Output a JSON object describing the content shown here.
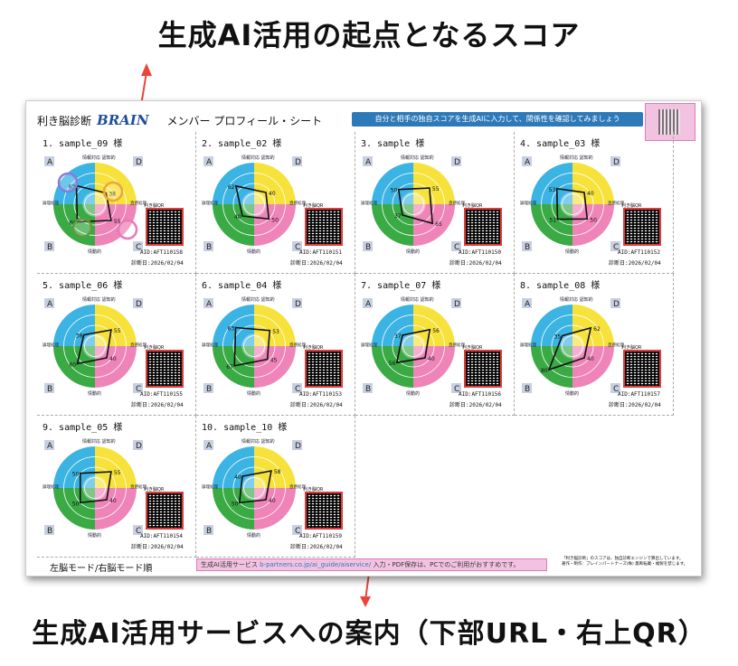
{
  "top_annotation": "生成AI活用の起点となるスコア",
  "bottom_annotation": "生成AI活用サービスへの案内（下部URL・右上QR）",
  "header": {
    "left_text": "利き脳診断",
    "brand": "BRAIN",
    "subtitle": "メンバー プロフィール・シート",
    "banner": "自分と相手の独自スコアを生成AIに入力して、関係性を確認してみましょう"
  },
  "colors": {
    "A": "#3bb4e3",
    "D": "#f6e23a",
    "B": "#3aaa45",
    "C": "#ee84b8",
    "banner": "#2e79b8"
  },
  "quadrant_letters": [
    "A",
    "D",
    "B",
    "C"
  ],
  "axis_labels": {
    "top": "情報対応 認知的",
    "left": "論理処理",
    "right": "直感処理",
    "bottom": "情動的"
  },
  "qr_label": "利き脳QR",
  "cards": [
    {
      "name": "1. sample_09 様",
      "aid": "AID:AFT110158",
      "date": "診断日:2026/02/04",
      "scores": [
        63,
        38,
        55,
        60
      ]
    },
    {
      "name": "2. sample_02 様",
      "aid": "AID:AFT110151",
      "date": "診断日:2026/02/04",
      "scores": [
        62,
        40,
        50,
        40
      ]
    },
    {
      "name": "3. sample 様",
      "aid": "AID:AFT110150",
      "date": "診断日:2026/02/04",
      "scores": [
        50,
        55,
        65,
        37
      ]
    },
    {
      "name": "4. sample_03 様",
      "aid": "AID:AFT110152",
      "date": "診断日:2026/02/04",
      "scores": [
        53,
        40,
        50,
        51
      ]
    },
    {
      "name": "5. sample_06 様",
      "aid": "AID:AFT110155",
      "date": "診断日:2026/02/04",
      "scores": [
        38,
        55,
        40,
        60
      ]
    },
    {
      "name": "6. sample_04 様",
      "aid": "AID:AFT110153",
      "date": "診断日:2026/02/04",
      "scores": [
        63,
        53,
        45,
        67
      ]
    },
    {
      "name": "7. sample_07 様",
      "aid": "AID:AFT110156",
      "date": "診断日:2026/02/04",
      "scores": [
        37,
        56,
        40,
        56
      ]
    },
    {
      "name": "8. sample_08 様",
      "aid": "AID:AFT110157",
      "date": "診断日:2026/02/04",
      "scores": [
        35,
        62,
        40,
        80
      ]
    },
    {
      "name": "9. sample_05 様",
      "aid": "AID:AFT110154",
      "date": "診断日:2026/02/04",
      "scores": [
        50,
        55,
        40,
        50
      ]
    },
    {
      "name": "10. sample_10 様",
      "aid": "AID:AFT110159",
      "date": "診断日:2026/02/04",
      "scores": [
        40,
        58,
        40,
        50
      ]
    }
  ],
  "footer": {
    "order": "左脳モード/右脳モード順",
    "service": "生成AI活用サービス",
    "url": "b-partners.co.jp/ai_guide/aiservice/",
    "service_note": "入力・PDF保存は、PCでのご利用がおすすめです。",
    "note_line1": "「利き脳診断」のスコアは、独自診断エンジンで算出しています。",
    "note_line2": "著作・制作：ブレインパートナーズ(株) 無断転載・複製を禁じます。"
  }
}
